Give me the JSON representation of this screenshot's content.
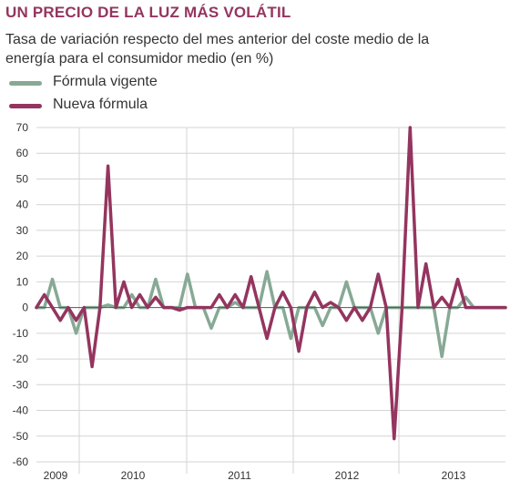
{
  "header": {
    "title": "UN PRECIO DE LA LUZ MÁS VOLÁTIL",
    "subtitle": "Tasa de variación respecto del mes anterior del coste medio de la energía para el consumidor medio (en %)"
  },
  "colors": {
    "title": "#94355f",
    "series_vigente": "#87a995",
    "series_nueva": "#94355f",
    "grid": "#d4d4d4",
    "zero_line": "#555555"
  },
  "chart_data": {
    "type": "line",
    "title": "UN PRECIO DE LA LUZ MÁS VOLÁTIL",
    "subtitle": "Tasa de variación respecto del mes anterior del coste medio de la energía para el consumidor medio (en %)",
    "x_tick_labels": [
      "2009",
      "2010",
      "2011",
      "2012",
      "2013"
    ],
    "y_ticks": [
      70,
      60,
      50,
      40,
      30,
      20,
      10,
      0,
      -10,
      -20,
      -30,
      -40,
      -50,
      -60
    ],
    "ylim": [
      -60,
      70
    ],
    "grid": true,
    "legend_position": "top-left",
    "series": [
      {
        "name": "Fórmula vigente",
        "color": "#87a995",
        "values": [
          0,
          0,
          11,
          0,
          0,
          -10,
          0,
          0,
          0,
          1,
          0,
          0,
          5,
          0,
          0,
          11,
          0,
          0,
          0,
          13,
          0,
          0,
          -8,
          0,
          0,
          2,
          0,
          0,
          0,
          14,
          0,
          0,
          -12,
          0,
          0,
          0,
          -7,
          0,
          0,
          10,
          0,
          0,
          0,
          -10,
          0,
          0,
          0,
          0,
          0,
          0,
          0,
          -19,
          0,
          0,
          4,
          0,
          0,
          0,
          0,
          0
        ]
      },
      {
        "name": "Nueva fórmula",
        "color": "#94355f",
        "values": [
          0,
          5,
          0,
          -5,
          0,
          -5,
          0,
          -23,
          0,
          55,
          0,
          10,
          0,
          5,
          0,
          4,
          0,
          0,
          -1,
          0,
          0,
          0,
          0,
          5,
          0,
          5,
          0,
          12,
          0,
          -12,
          0,
          6,
          0,
          -17,
          0,
          6,
          0,
          2,
          0,
          -5,
          0,
          -5,
          0,
          13,
          0,
          -51,
          0,
          70,
          0,
          17,
          0,
          4,
          0,
          11,
          0,
          0,
          0,
          0,
          0,
          0
        ]
      }
    ]
  }
}
